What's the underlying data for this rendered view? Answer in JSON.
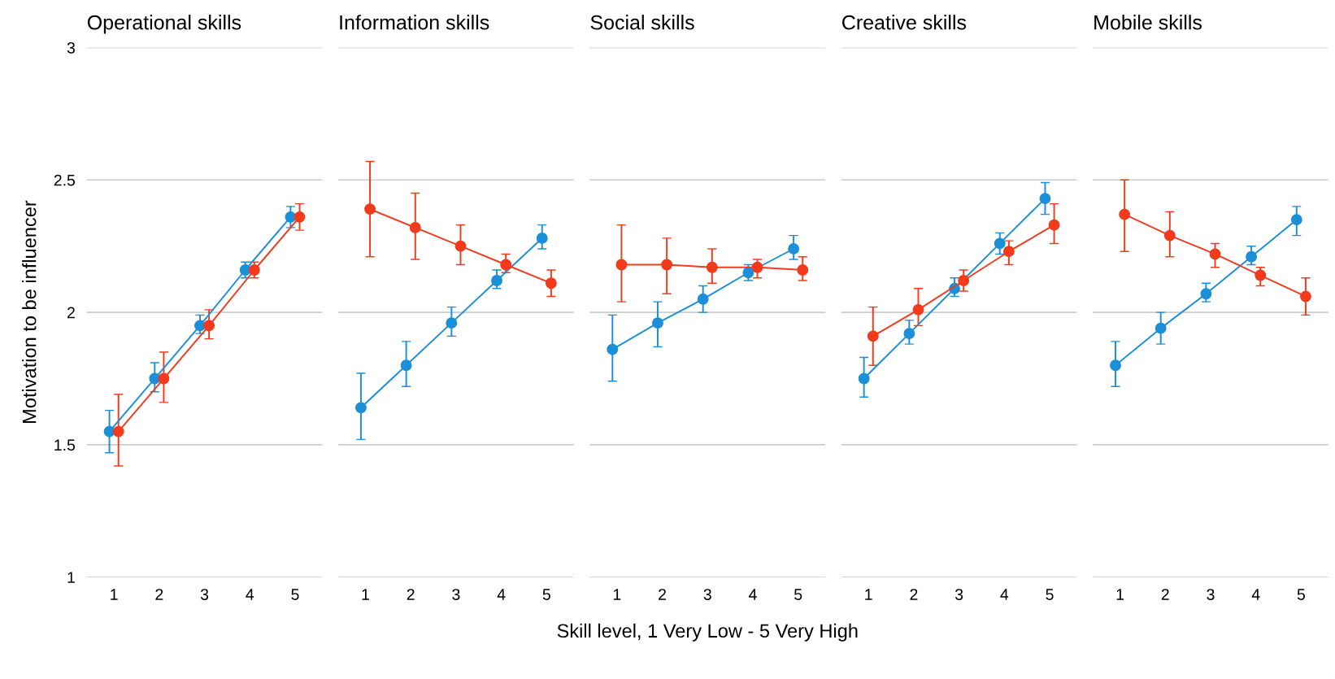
{
  "chart_data": [
    {
      "type": "line",
      "title": "Operational skills",
      "ylabel": "Motivation to be influencer",
      "categories": [
        "1",
        "2",
        "3",
        "4",
        "5"
      ],
      "ylim": [
        1,
        3
      ],
      "yticks": [
        1,
        1.5,
        2,
        2.5,
        3
      ],
      "grid": "y",
      "marker": "circle",
      "series": [
        {
          "color": "#1b8fd8",
          "values": [
            1.55,
            1.75,
            1.95,
            2.16,
            2.36
          ],
          "errors": [
            [
              1.47,
              1.63
            ],
            [
              1.7,
              1.81
            ],
            [
              1.92,
              1.99
            ],
            [
              2.13,
              2.19
            ],
            [
              2.32,
              2.4
            ]
          ]
        },
        {
          "color": "#f23a1c",
          "values": [
            1.55,
            1.75,
            1.95,
            2.16,
            2.36
          ],
          "errors": [
            [
              1.42,
              1.69
            ],
            [
              1.66,
              1.85
            ],
            [
              1.9,
              2.01
            ],
            [
              2.13,
              2.19
            ],
            [
              2.31,
              2.41
            ]
          ]
        }
      ]
    },
    {
      "type": "line",
      "title": "Information skills",
      "categories": [
        "1",
        "2",
        "3",
        "4",
        "5"
      ],
      "ylim": [
        1,
        3
      ],
      "yticks": [
        1,
        1.5,
        2,
        2.5,
        3
      ],
      "grid": "y",
      "marker": "circle",
      "tick_labels": "x",
      "series": [
        {
          "color": "#1b8fd8",
          "values": [
            1.64,
            1.8,
            1.96,
            2.12,
            2.28
          ],
          "errors": [
            [
              1.52,
              1.77
            ],
            [
              1.72,
              1.89
            ],
            [
              1.91,
              2.02
            ],
            [
              2.09,
              2.16
            ],
            [
              2.24,
              2.33
            ]
          ]
        },
        {
          "color": "#f23a1c",
          "values": [
            2.39,
            2.32,
            2.25,
            2.18,
            2.11
          ],
          "errors": [
            [
              2.21,
              2.57
            ],
            [
              2.2,
              2.45
            ],
            [
              2.18,
              2.33
            ],
            [
              2.15,
              2.22
            ],
            [
              2.06,
              2.16
            ]
          ]
        }
      ]
    },
    {
      "type": "line",
      "title": "Social skills",
      "xlabel": "Skill level, 1 Very Low - 5 Very High",
      "categories": [
        "1",
        "2",
        "3",
        "4",
        "5"
      ],
      "ylim": [
        1,
        3
      ],
      "yticks": [
        1,
        1.5,
        2,
        2.5,
        3
      ],
      "grid": "y",
      "marker": "circle",
      "tick_labels": "x",
      "series": [
        {
          "color": "#1b8fd8",
          "values": [
            1.86,
            1.96,
            2.05,
            2.15,
            2.24
          ],
          "errors": [
            [
              1.74,
              1.99
            ],
            [
              1.87,
              2.04
            ],
            [
              2.0,
              2.1
            ],
            [
              2.12,
              2.18
            ],
            [
              2.2,
              2.29
            ]
          ]
        },
        {
          "color": "#f23a1c",
          "values": [
            2.18,
            2.18,
            2.17,
            2.17,
            2.16
          ],
          "errors": [
            [
              2.04,
              2.33
            ],
            [
              2.07,
              2.28
            ],
            [
              2.11,
              2.24
            ],
            [
              2.13,
              2.2
            ],
            [
              2.12,
              2.21
            ]
          ]
        }
      ]
    },
    {
      "type": "line",
      "title": "Creative skills",
      "categories": [
        "1",
        "2",
        "3",
        "4",
        "5"
      ],
      "ylim": [
        1,
        3
      ],
      "yticks": [
        1,
        1.5,
        2,
        2.5,
        3
      ],
      "grid": "y",
      "marker": "circle",
      "tick_labels": "x",
      "series": [
        {
          "color": "#1b8fd8",
          "values": [
            1.75,
            1.92,
            2.09,
            2.26,
            2.43
          ],
          "errors": [
            [
              1.68,
              1.83
            ],
            [
              1.88,
              1.97
            ],
            [
              2.06,
              2.13
            ],
            [
              2.22,
              2.3
            ],
            [
              2.37,
              2.49
            ]
          ]
        },
        {
          "color": "#f23a1c",
          "values": [
            1.91,
            2.01,
            2.12,
            2.23,
            2.33
          ],
          "errors": [
            [
              1.8,
              2.02
            ],
            [
              1.95,
              2.09
            ],
            [
              2.08,
              2.16
            ],
            [
              2.18,
              2.27
            ],
            [
              2.26,
              2.41
            ]
          ]
        }
      ]
    },
    {
      "type": "line",
      "title": "Mobile skills",
      "categories": [
        "1",
        "2",
        "3",
        "4",
        "5"
      ],
      "ylim": [
        1,
        3
      ],
      "yticks": [
        1,
        1.5,
        2,
        2.5,
        3
      ],
      "grid": "y",
      "marker": "circle",
      "tick_labels": "x",
      "series": [
        {
          "color": "#1b8fd8",
          "values": [
            1.8,
            1.94,
            2.07,
            2.21,
            2.35
          ],
          "errors": [
            [
              1.72,
              1.89
            ],
            [
              1.88,
              2.0
            ],
            [
              2.04,
              2.11
            ],
            [
              2.18,
              2.25
            ],
            [
              2.29,
              2.4
            ]
          ]
        },
        {
          "color": "#f23a1c",
          "values": [
            2.37,
            2.29,
            2.22,
            2.14,
            2.06
          ],
          "errors": [
            [
              2.23,
              2.5
            ],
            [
              2.21,
              2.38
            ],
            [
              2.17,
              2.26
            ],
            [
              2.1,
              2.17
            ],
            [
              1.99,
              2.13
            ]
          ]
        }
      ]
    }
  ]
}
